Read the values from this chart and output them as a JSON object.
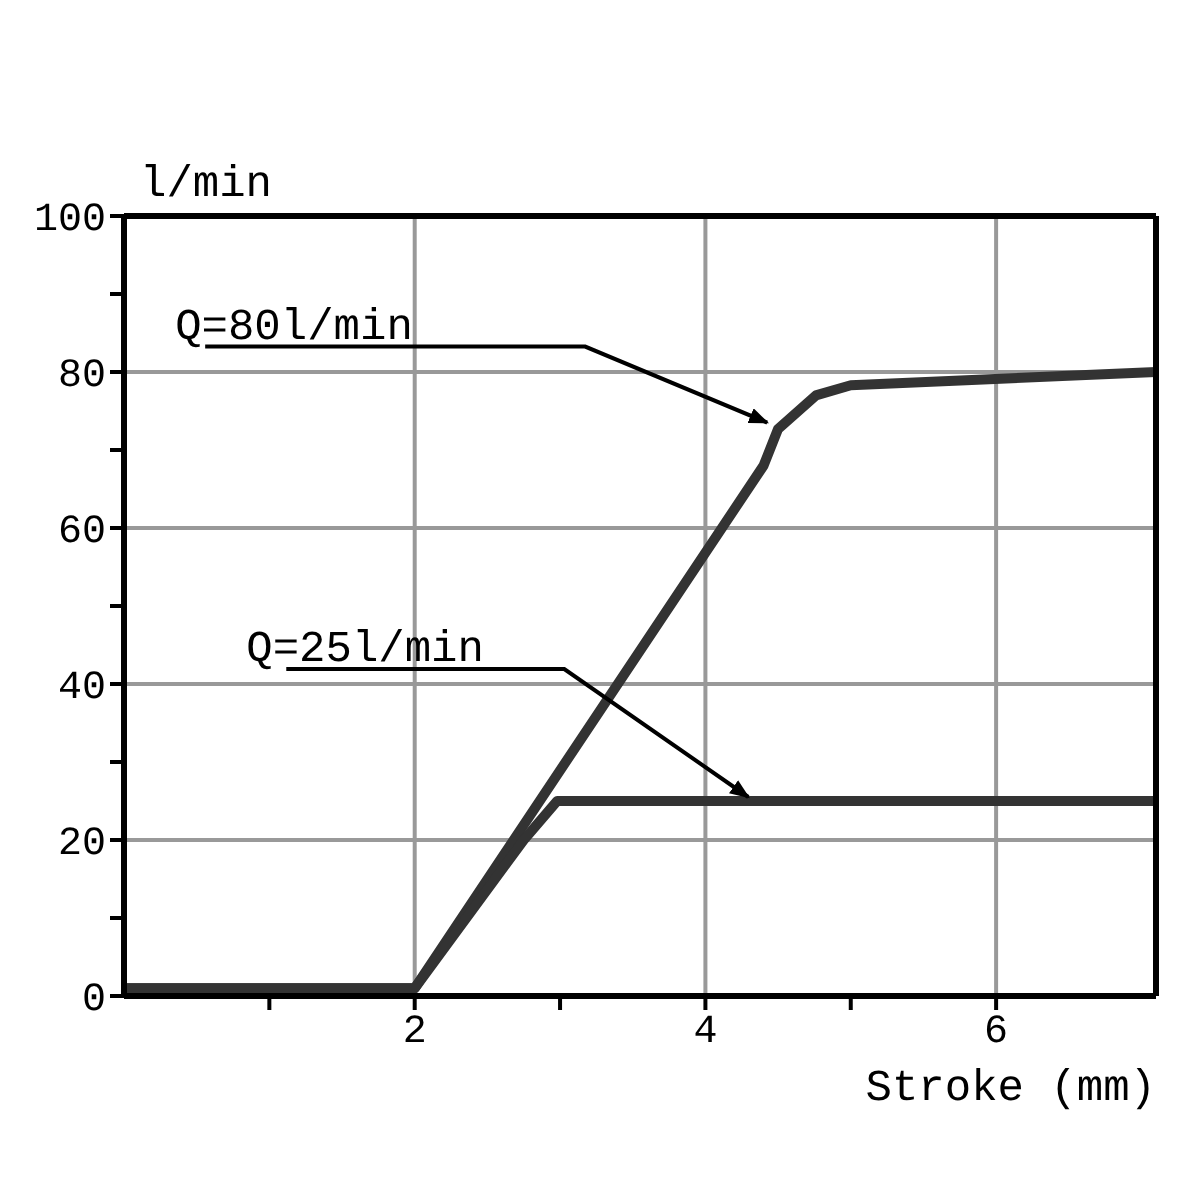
{
  "chart_data": {
    "type": "line",
    "xlabel": "Stroke (mm)",
    "ylabel": "l/min",
    "xlim": [
      0,
      7.1
    ],
    "ylim": [
      0,
      100
    ],
    "xticks": [
      {
        "value": 1,
        "label": null
      },
      2,
      {
        "value": 3,
        "label": null
      },
      4,
      {
        "value": 5,
        "label": null
      },
      6
    ],
    "yticks": [
      0,
      {
        "value": 10,
        "label": null
      },
      20,
      {
        "value": 30,
        "label": null
      },
      40,
      {
        "value": 50,
        "label": null
      },
      60,
      {
        "value": 70,
        "label": null
      },
      80,
      {
        "value": 90,
        "label": null
      },
      100
    ],
    "grid": true,
    "marker": "none",
    "line_style": "solid",
    "series": [
      {
        "color": "#333333",
        "x": [
          0,
          2,
          4.4,
          4.5,
          4.76,
          5.0,
          7.1
        ],
        "values": [
          1,
          1,
          68,
          72.7,
          77,
          78.3,
          80
        ]
      },
      {
        "color": "#333333",
        "x": [
          0,
          2,
          2.75,
          2.98,
          3.1,
          7.1
        ],
        "values": [
          1,
          1,
          20,
          25,
          25,
          25
        ]
      }
    ],
    "annotations": [
      {
        "text": "Q=80l/min",
        "x": 4.48,
        "y": 73
      },
      {
        "text": "Q=25l/min",
        "x": 4.35,
        "y": 25
      }
    ]
  }
}
